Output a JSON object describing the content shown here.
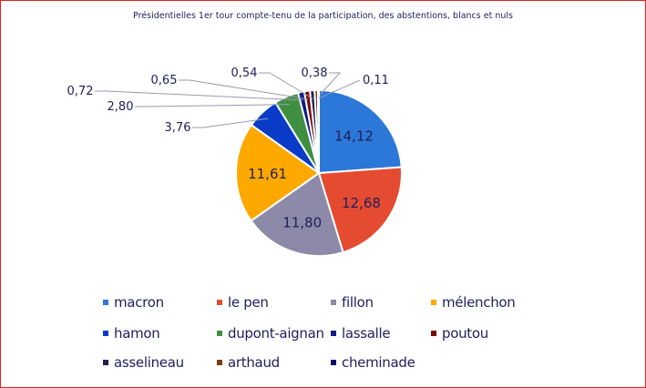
{
  "chart_data": {
    "type": "pie",
    "title": "Présidentielles  1er tour compte-tenu de la participation, des abstentions, blancs et nuls",
    "legend_position": "bottom",
    "slices": [
      {
        "name": "macron",
        "value": 14.12,
        "label": "14,12",
        "color": "#2b78d8"
      },
      {
        "name": "le pen",
        "value": 12.68,
        "label": "12,68",
        "color": "#e44b31"
      },
      {
        "name": "fillon",
        "value": 11.8,
        "label": "11,80",
        "color": "#8c8aa8"
      },
      {
        "name": "mélenchon",
        "value": 11.61,
        "label": "11,61",
        "color": "#ffa800"
      },
      {
        "name": "hamon",
        "value": 3.76,
        "label": "3,76",
        "color": "#0a3cc8"
      },
      {
        "name": "dupont-aignan",
        "value": 2.8,
        "label": "2,80",
        "color": "#3f8f40"
      },
      {
        "name": "lassalle",
        "value": 0.72,
        "label": "0,72",
        "color": "#0d1c86"
      },
      {
        "name": "poutou",
        "value": 0.65,
        "label": "0,65",
        "color": "#7a0a0a"
      },
      {
        "name": "asselineau",
        "value": 0.54,
        "label": "0,54",
        "color": "#23204f"
      },
      {
        "name": "arthaud",
        "value": 0.38,
        "label": "0,38",
        "color": "#7b3a10"
      },
      {
        "name": "cheminade",
        "value": 0.11,
        "label": "0,11",
        "color": "#0a0a6e"
      }
    ]
  }
}
